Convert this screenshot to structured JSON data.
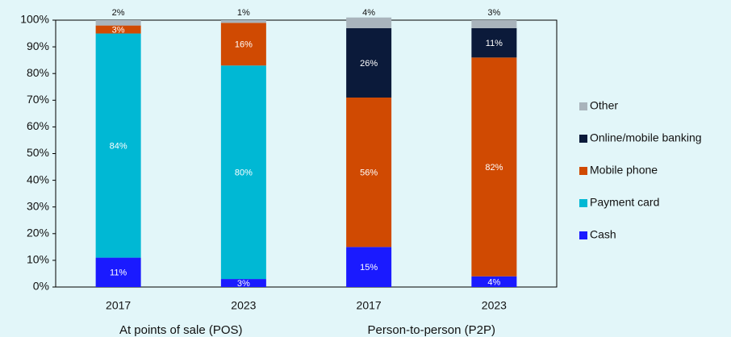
{
  "chart_data": {
    "type": "stacked_bar",
    "categories": [
      "2017",
      "2023",
      "2017",
      "2023"
    ],
    "groups": [
      "At points of sale (POS)",
      "Person-to-person (P2P)"
    ],
    "series": [
      {
        "name": "Cash",
        "color": "#1a1aff",
        "values": [
          11,
          3,
          15,
          4
        ],
        "value_labels": [
          "11%",
          "3%",
          "15%",
          "4%"
        ]
      },
      {
        "name": "Payment card",
        "color": "#00b8d4",
        "values": [
          84,
          80,
          null,
          null
        ],
        "value_labels": [
          "84%",
          "80%",
          null,
          null
        ]
      },
      {
        "name": "Mobile phone",
        "color": "#d04a02",
        "values": [
          3,
          16,
          56,
          82
        ],
        "value_labels": [
          "3%",
          "16%",
          "56%",
          "82%"
        ]
      },
      {
        "name": "Online/mobile banking",
        "color": "#0b1a3a",
        "values": [
          null,
          null,
          26,
          11
        ],
        "value_labels": [
          null,
          null,
          "26%",
          "11%"
        ]
      },
      {
        "name": "Other",
        "color": "#a9b4bc",
        "values": [
          2,
          1,
          4,
          3
        ],
        "value_labels": [
          "2%",
          "1%",
          "4%",
          "3%"
        ]
      }
    ],
    "ylim": [
      0,
      100
    ],
    "yticks": [
      {
        "value": 0,
        "label": "0%"
      },
      {
        "value": 10,
        "label": "10%"
      },
      {
        "value": 20,
        "label": "20%"
      },
      {
        "value": 30,
        "label": "30%"
      },
      {
        "value": 40,
        "label": "40%"
      },
      {
        "value": 50,
        "label": "50%"
      },
      {
        "value": 60,
        "label": "60%"
      },
      {
        "value": 70,
        "label": "70%"
      },
      {
        "value": 80,
        "label": "80%"
      },
      {
        "value": 90,
        "label": "90%"
      },
      {
        "value": 100,
        "label": "100%"
      }
    ],
    "legend": "right"
  }
}
